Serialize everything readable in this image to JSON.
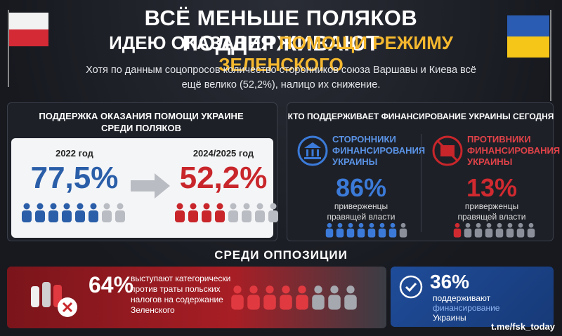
{
  "header": {
    "title_line1": "ВСЁ МЕНЬШЕ ПОЛЯКОВ ПОДДЕРЖИВАЮТ",
    "title_line2": "ИДЕЮ ОКАЗАНИЯ",
    "title_highlight": "ПОМОЩИ РЕЖИМУ ЗЕЛЕНСКОГО",
    "subtitle": "Хотя по данным соцопросов количество сторонников союза Варшавы и Киева всё ещё велико (52,2%), налицо их снижение."
  },
  "support": {
    "title": "ПОДДЕРЖКА ОКАЗАНИЯ ПОМОЩИ УКРАИНЕ СРЕДИ ПОЛЯКОВ",
    "before": {
      "year": "2022 год",
      "value": "77,5%"
    },
    "after": {
      "year": "2024/2025 год",
      "value": "52,2%"
    }
  },
  "today": {
    "title": "КТО ПОДДЕРЖИВАЕТ ФИНАНСИРОВАНИЕ УКРАИНЫ СЕГОДНЯ",
    "supporters": {
      "label": "СТОРОННИКИ ФИНАНСИРОВАНИЯ УКРАИНЫ",
      "value": "86%",
      "note": "приверженцы правящей власти"
    },
    "opponents": {
      "label": "ПРОТИВНИКИ ФИНАНСИРОВАНИЯ УКРАИНЫ",
      "value": "13%",
      "note": "приверженцы правящей власти"
    }
  },
  "opposition": {
    "title": "СРЕДИ ОППОЗИЦИИ",
    "against": {
      "value": "64%",
      "text": "выступают категорически против траты польских налогов на содержание Зеленского"
    },
    "for": {
      "value": "36%",
      "line1": "поддерживают",
      "line2": "финансирование",
      "line3": "Украины"
    }
  },
  "footer": {
    "source": "t.me/fsk_today"
  }
}
